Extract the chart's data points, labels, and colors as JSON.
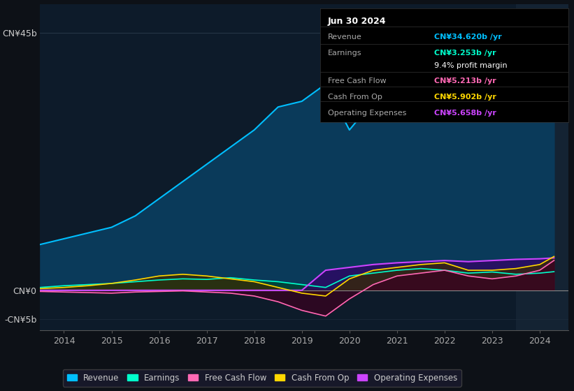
{
  "bg_color": "#0d1117",
  "plot_bg_color": "#0d1b2a",
  "title_box_text": "Jun 30 2024",
  "info_rows": [
    {
      "label": "Revenue",
      "value": "CN¥34.620b /yr",
      "value_color": "#00bfff",
      "label_color": "#aaaaaa"
    },
    {
      "label": "Earnings",
      "value": "CN¥3.253b /yr",
      "value_color": "#00ffcc",
      "label_color": "#aaaaaa"
    },
    {
      "label": "",
      "value": "9.4% profit margin",
      "value_color": "#ffffff",
      "label_color": "#aaaaaa"
    },
    {
      "label": "Free Cash Flow",
      "value": "CN¥5.213b /yr",
      "value_color": "#ff69b4",
      "label_color": "#aaaaaa"
    },
    {
      "label": "Cash From Op",
      "value": "CN¥5.902b /yr",
      "value_color": "#ffd700",
      "label_color": "#aaaaaa"
    },
    {
      "label": "Operating Expenses",
      "value": "CN¥5.658b /yr",
      "value_color": "#cc44ff",
      "label_color": "#aaaaaa"
    }
  ],
  "years": [
    2013.5,
    2014.0,
    2014.5,
    2015.0,
    2015.5,
    2016.0,
    2016.5,
    2017.0,
    2017.5,
    2018.0,
    2018.5,
    2019.0,
    2019.5,
    2020.0,
    2020.5,
    2021.0,
    2021.5,
    2022.0,
    2022.5,
    2023.0,
    2023.5,
    2024.0,
    2024.3
  ],
  "revenue": [
    8,
    9,
    10,
    11,
    13,
    16,
    19,
    22,
    25,
    28,
    32,
    33,
    36,
    28,
    33,
    38,
    42,
    45,
    40,
    42,
    38,
    30,
    34.6
  ],
  "earnings": [
    0.5,
    0.8,
    1.0,
    1.2,
    1.5,
    1.8,
    2.0,
    1.9,
    2.2,
    1.8,
    1.5,
    1.0,
    0.5,
    2.5,
    3.0,
    3.5,
    3.8,
    3.5,
    3.0,
    3.2,
    2.8,
    3.0,
    3.253
  ],
  "free_cf": [
    -0.2,
    -0.3,
    -0.4,
    -0.5,
    -0.3,
    -0.2,
    -0.1,
    -0.3,
    -0.5,
    -1.0,
    -2.0,
    -3.5,
    -4.5,
    -1.5,
    1.0,
    2.5,
    3.0,
    3.5,
    2.5,
    2.0,
    2.5,
    3.5,
    5.213
  ],
  "cash_from_op": [
    0.3,
    0.5,
    0.8,
    1.2,
    1.8,
    2.5,
    2.8,
    2.5,
    2.0,
    1.5,
    0.5,
    -0.5,
    -1.0,
    2.0,
    3.5,
    4.0,
    4.5,
    4.8,
    3.5,
    3.5,
    3.8,
    4.5,
    5.902
  ],
  "op_expenses": [
    0.0,
    0.0,
    0.0,
    0.0,
    0.0,
    0.0,
    0.0,
    0.0,
    0.0,
    0.0,
    0.0,
    0.0,
    3.5,
    4.0,
    4.5,
    4.8,
    5.0,
    5.2,
    5.0,
    5.2,
    5.4,
    5.5,
    5.658
  ],
  "revenue_color": "#00bfff",
  "revenue_fill": "#0a3a5a",
  "earnings_color": "#00ffcc",
  "earnings_fill": "#004433",
  "free_cf_color": "#ff69b4",
  "free_cf_fill": "#3a0020",
  "cash_op_color": "#ffd700",
  "cash_op_fill": "#3a2a00",
  "op_exp_color": "#cc44ff",
  "op_exp_fill": "#330066",
  "highlight_color": "#1a2a3a",
  "ylim_min": -7,
  "ylim_max": 50,
  "ytick_neg": -5,
  "ytick_neg_label": "-CN¥5b",
  "ytick_zero_label": "CN¥0",
  "ytick_top": 45,
  "ytick_top_label": "CN¥45b",
  "xlim_min": 2013.5,
  "xlim_max": 2024.6,
  "xticks": [
    2014,
    2015,
    2016,
    2017,
    2018,
    2019,
    2020,
    2021,
    2022,
    2023,
    2024
  ],
  "legend_entries": [
    {
      "label": "Revenue",
      "color": "#00bfff"
    },
    {
      "label": "Earnings",
      "color": "#00ffcc"
    },
    {
      "label": "Free Cash Flow",
      "color": "#ff69b4"
    },
    {
      "label": "Cash From Op",
      "color": "#ffd700"
    },
    {
      "label": "Operating Expenses",
      "color": "#cc44ff"
    }
  ],
  "highlight_start": 2023.5,
  "highlight_end": 2024.6
}
